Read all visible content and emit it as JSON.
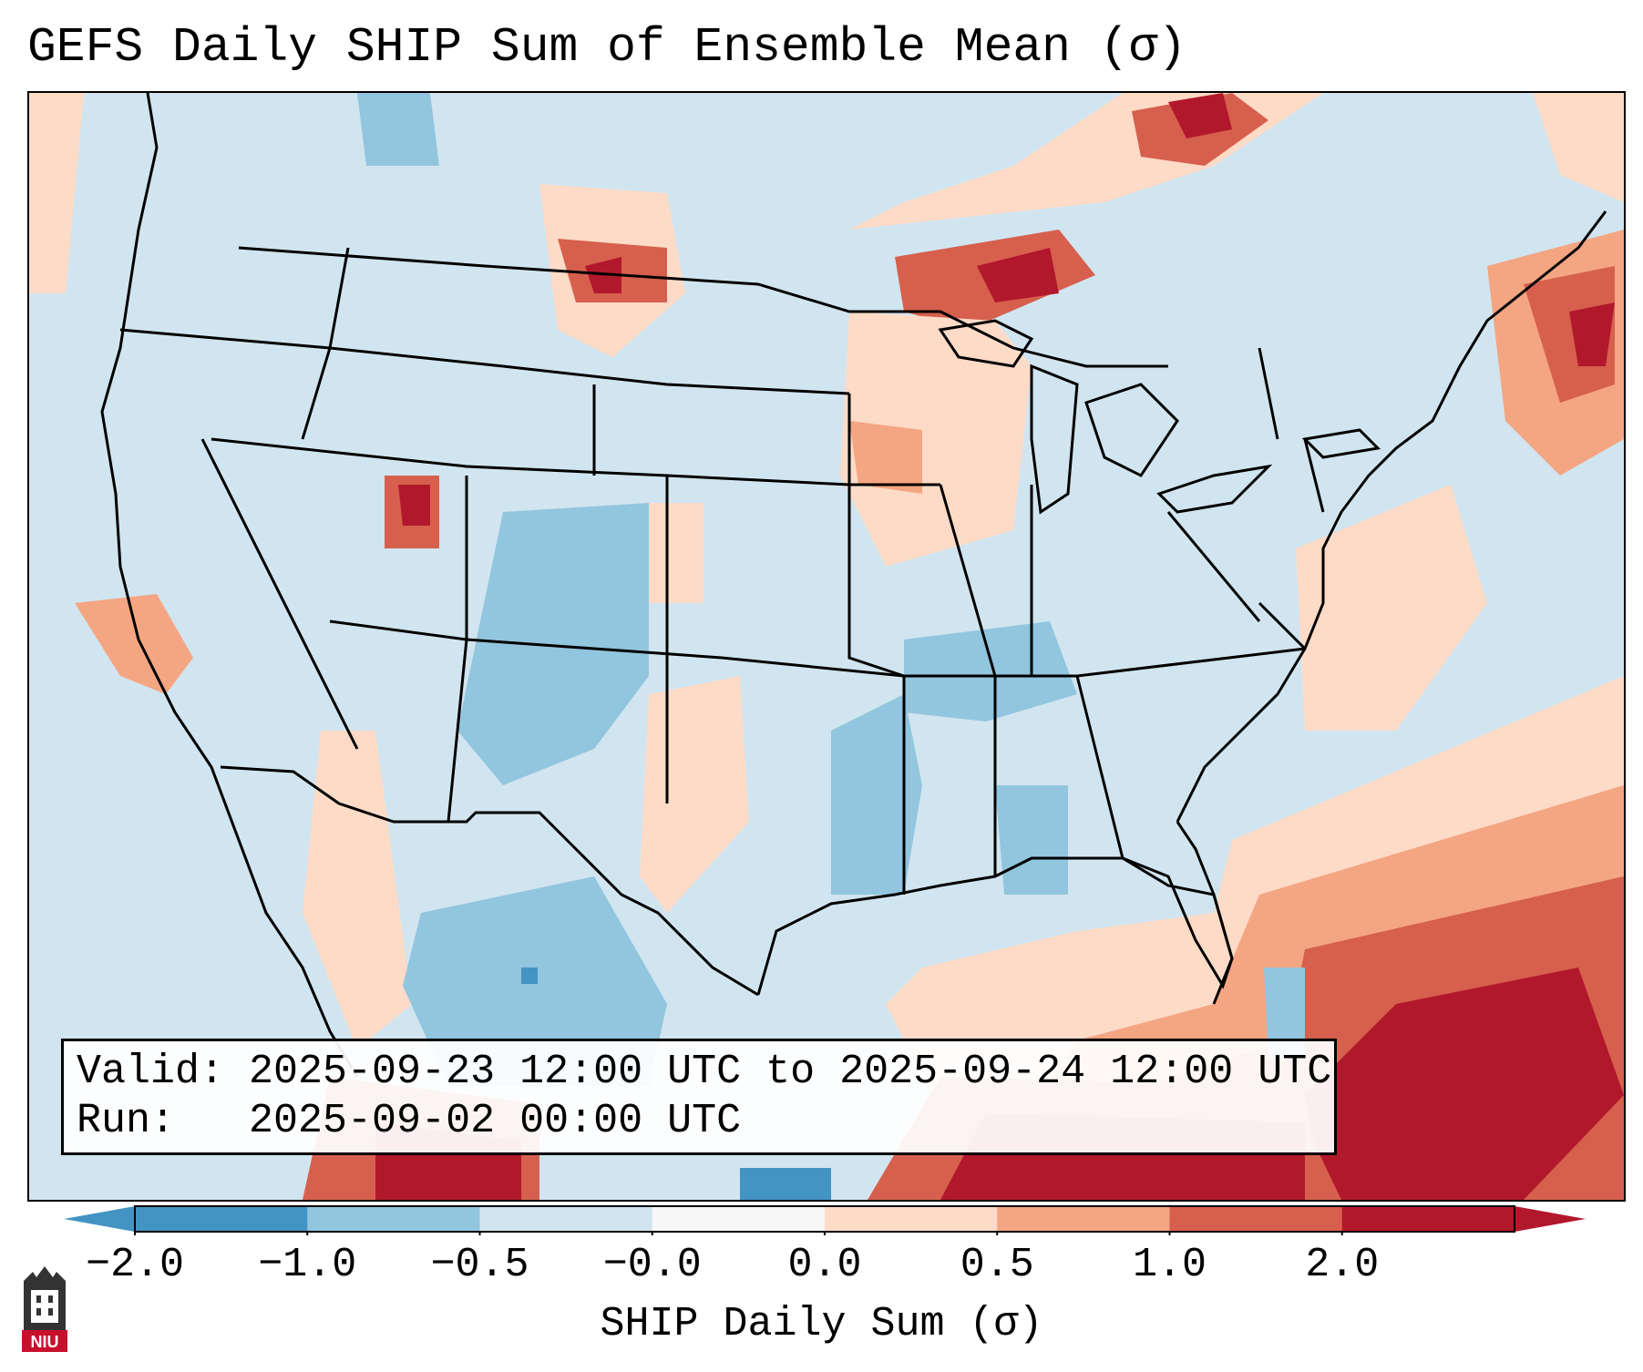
{
  "title": "GEFS Daily SHIP Sum of Ensemble Mean (σ)",
  "valid_line": "Valid: 2025-09-23 12:00 UTC to 2025-09-24 12:00 UTC",
  "run_line": "Run:   2025-09-02 00:00 UTC",
  "colorbar": {
    "label": "SHIP Daily Sum (σ)",
    "ticks": [
      "−2.0",
      "−1.0",
      "−0.5",
      "−0.0",
      "0.0",
      "0.5",
      "1.0",
      "2.0"
    ],
    "colors": [
      "#4393c3",
      "#92c5de",
      "#d1e5f0",
      "#f7f7f7",
      "#fddbc7",
      "#f4a582",
      "#d6604d",
      "#b2182b"
    ]
  },
  "logo": {
    "text": "NIU",
    "color": "#c8102e"
  }
}
